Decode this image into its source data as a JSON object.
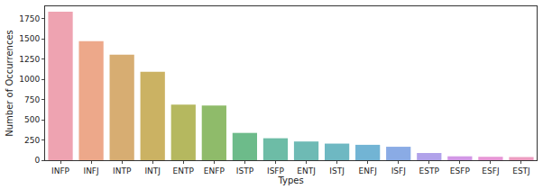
{
  "chart_data": {
    "type": "bar",
    "x_label": "Types",
    "y_label": "Number of Occurrences",
    "categories": [
      "INFP",
      "INFJ",
      "INTP",
      "INTJ",
      "ENTP",
      "ENFP",
      "ISTP",
      "ISFP",
      "ENTJ",
      "ISTJ",
      "ENFJ",
      "ISFJ",
      "ESTP",
      "ESFP",
      "ESFJ",
      "ESTJ"
    ],
    "values": [
      1832,
      1470,
      1304,
      1091,
      685,
      675,
      337,
      271,
      231,
      205,
      190,
      166,
      89,
      48,
      42,
      39
    ],
    "colors": [
      "#eea3b1",
      "#eda88a",
      "#d7ad72",
      "#cbb263",
      "#b5b85f",
      "#8fbb6a",
      "#6dbb8a",
      "#6dbca6",
      "#6ebab4",
      "#6eb8c2",
      "#72b4d4",
      "#8aabe5",
      "#b1a2ea",
      "#d298e6",
      "#e796d6",
      "#ed9dc1"
    ],
    "ylim": [
      0,
      1900
    ],
    "yticks": [
      0,
      250,
      500,
      750,
      1000,
      1250,
      1500,
      1750
    ],
    "grid": false
  }
}
